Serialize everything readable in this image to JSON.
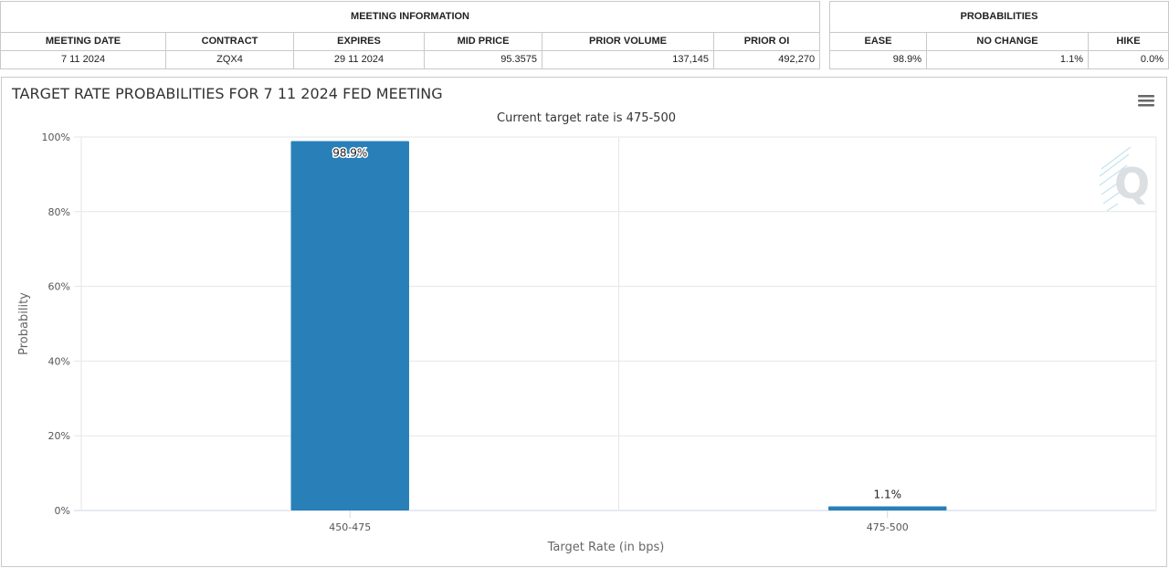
{
  "meeting_info": {
    "header": "MEETING INFORMATION",
    "columns": [
      "MEETING DATE",
      "CONTRACT",
      "EXPIRES",
      "MID PRICE",
      "PRIOR VOLUME",
      "PRIOR OI"
    ],
    "row": [
      "7 11 2024",
      "ZQX4",
      "29 11 2024",
      "95.3575",
      "137,145",
      "492,270"
    ]
  },
  "probabilities": {
    "header": "PROBABILITIES",
    "columns": [
      "EASE",
      "NO CHANGE",
      "HIKE"
    ],
    "row": [
      "98.9%",
      "1.1%",
      "0.0%"
    ]
  },
  "chart_data": {
    "type": "bar",
    "title": "TARGET RATE PROBABILITIES FOR 7 11 2024 FED MEETING",
    "subtitle": "Current target rate is 475-500",
    "xlabel": "Target Rate (in bps)",
    "ylabel": "Probability",
    "categories": [
      "450-475",
      "475-500"
    ],
    "values": [
      98.9,
      1.1
    ],
    "value_labels": [
      "98.9%",
      "1.1%"
    ],
    "ylim": [
      0,
      100
    ],
    "yticks": [
      0,
      20,
      40,
      60,
      80,
      100
    ],
    "ytick_labels": [
      "0%",
      "20%",
      "40%",
      "60%",
      "80%",
      "100%"
    ],
    "grid": true,
    "bar_color": "#2980b9",
    "watermark": "Q"
  },
  "icons": {
    "menu": "hamburger-menu-icon"
  }
}
